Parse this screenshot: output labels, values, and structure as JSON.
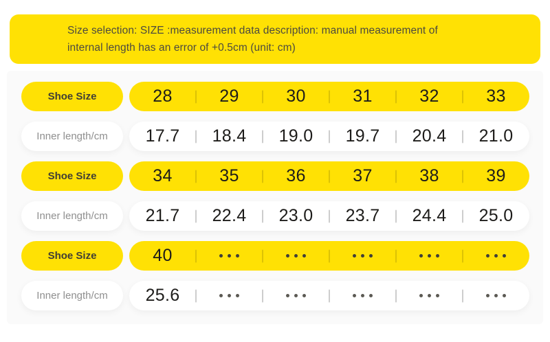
{
  "header": {
    "line1": "Size selection: SIZE :measurement data description: manual measurement of",
    "line2": "internal length has an error of +0.5cm (unit: cm)"
  },
  "labels": {
    "shoe_size": "Shoe Size",
    "inner_length": "Inner length/cm"
  },
  "ellipsis_symbol": "•••",
  "colors": {
    "yellow": "#FFE104",
    "banner_text": "#4C4A3F",
    "number_text": "#1D1C1A",
    "inner_label_text": "#8F8F8F",
    "separator_on_white": "#CDCDCD",
    "dots": "#5B5953",
    "content_background": "#FAFAFA"
  },
  "chart_data": {
    "type": "table",
    "title": "Size selection: SIZE :measurement data description: manual measurement of internal length has an error of +0.5cm (unit: cm)",
    "rows": [
      {
        "type": "size",
        "label": "Shoe Size",
        "values": [
          "28",
          "29",
          "30",
          "31",
          "32",
          "33"
        ]
      },
      {
        "type": "length",
        "label": "Inner length/cm",
        "values": [
          "17.7",
          "18.4",
          "19.0",
          "19.7",
          "20.4",
          "21.0"
        ]
      },
      {
        "type": "size",
        "label": "Shoe Size",
        "values": [
          "34",
          "35",
          "36",
          "37",
          "38",
          "39"
        ]
      },
      {
        "type": "length",
        "label": "Inner length/cm",
        "values": [
          "21.7",
          "22.4",
          "23.0",
          "23.7",
          "24.4",
          "25.0"
        ]
      },
      {
        "type": "size",
        "label": "Shoe Size",
        "values": [
          "40",
          "•••",
          "•••",
          "•••",
          "•••",
          "•••"
        ]
      },
      {
        "type": "length",
        "label": "Inner length/cm",
        "values": [
          "25.6",
          "•••",
          "•••",
          "•••",
          "•••",
          "•••"
        ]
      }
    ]
  }
}
